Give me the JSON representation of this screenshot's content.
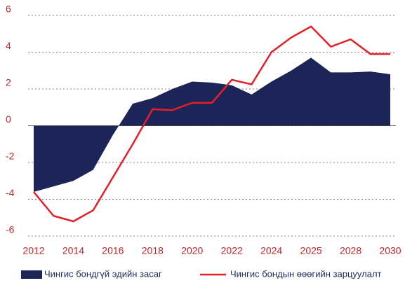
{
  "chart_data": {
    "type": "area-line",
    "categories": [
      "2012",
      null,
      "2014",
      null,
      "2016",
      null,
      "2018",
      null,
      "2020",
      null,
      "2022",
      null,
      "2024",
      null,
      "2025",
      null,
      "2028",
      null,
      "2030"
    ],
    "series": [
      {
        "name": "Чингис бондгүй эдийн засаг",
        "type": "area",
        "color": "#1d2457",
        "values": [
          -3.6,
          -3.3,
          -3.0,
          -2.4,
          -0.5,
          1.2,
          1.5,
          2.0,
          2.4,
          2.35,
          2.2,
          1.7,
          2.4,
          3.0,
          3.7,
          2.9,
          2.9,
          2.95,
          2.8
        ]
      },
      {
        "name": "Чингис бондын өөөгийн зарцуулалт",
        "type": "line",
        "color": "#e3202a",
        "values": [
          -3.6,
          -4.9,
          -5.2,
          -4.6,
          -2.8,
          -1.0,
          0.9,
          0.85,
          1.25,
          1.25,
          2.5,
          2.25,
          4.0,
          4.8,
          5.4,
          4.3,
          4.7,
          3.9,
          3.9
        ]
      }
    ],
    "ylim": [
      -6,
      6
    ],
    "yticks": [
      6,
      4,
      2,
      0,
      -2,
      -4,
      -6
    ],
    "grid": true,
    "legend": "bottom"
  }
}
